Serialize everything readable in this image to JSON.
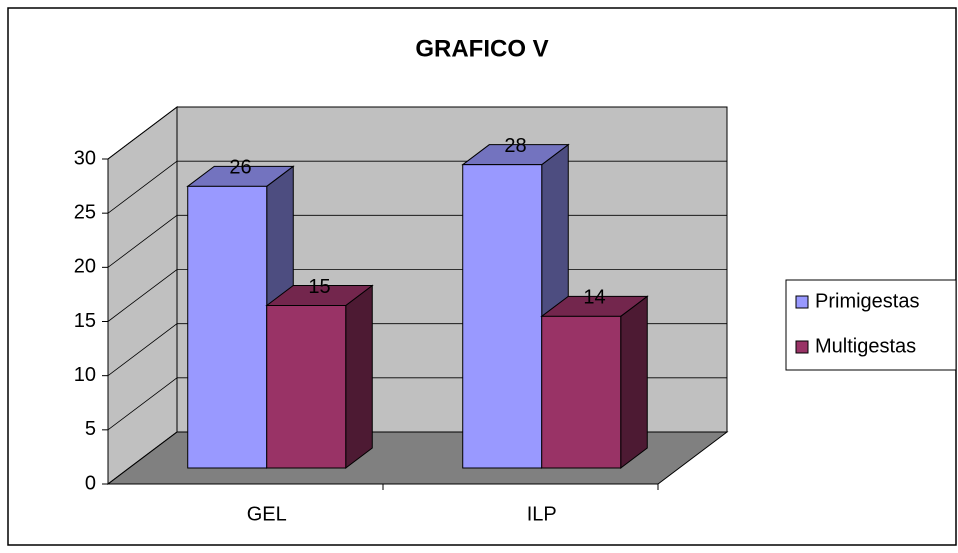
{
  "chart_data": {
    "type": "bar3d",
    "title": "GRAFICO V",
    "categories": [
      "GEL",
      "ILP"
    ],
    "series": [
      {
        "name": "Primigestas",
        "color": "#9999ff",
        "values": [
          26,
          28
        ]
      },
      {
        "name": "Multigestas",
        "color": "#993366",
        "values": [
          15,
          14
        ]
      }
    ],
    "ylim": [
      0,
      30
    ],
    "yticks": [
      0,
      5,
      10,
      15,
      20,
      25,
      30
    ],
    "grid": true,
    "legend": "right"
  }
}
